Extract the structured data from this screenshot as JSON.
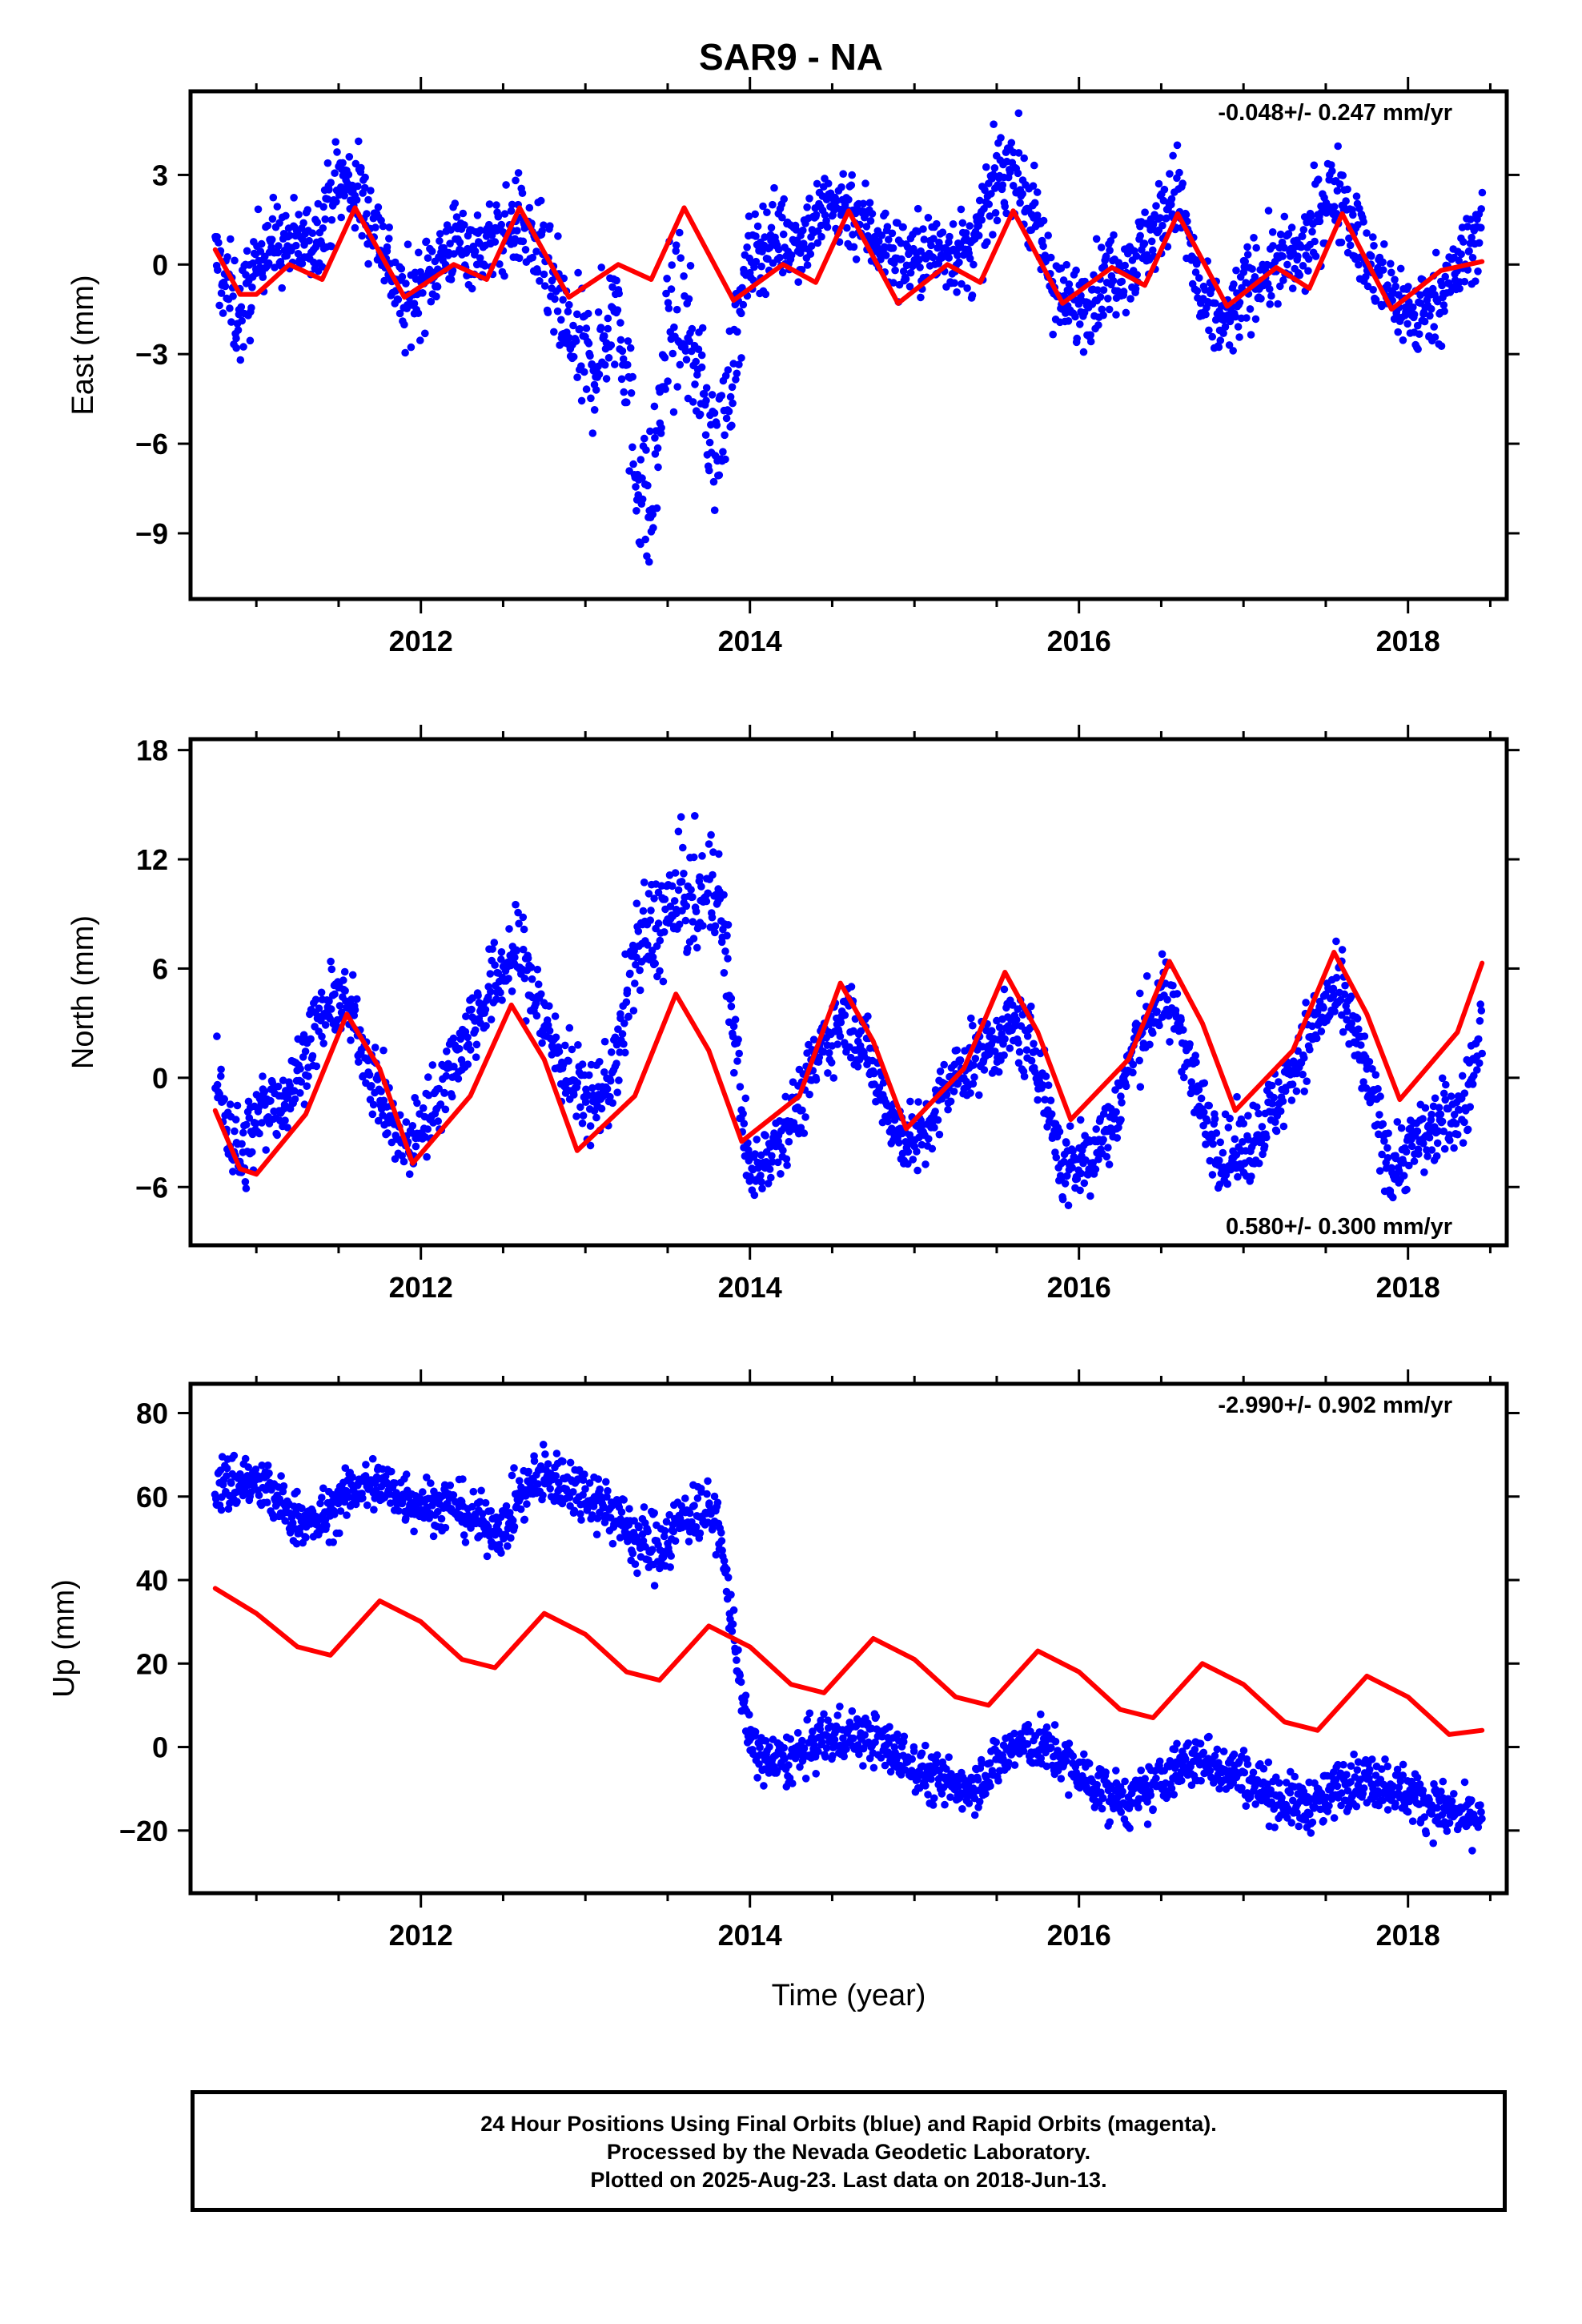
{
  "title": "SAR9 - NA",
  "colors": {
    "daily_positions": "#0000ff",
    "model_fit": "#ff0000",
    "frame": "#000000"
  },
  "footer": {
    "line1": "24 Hour Positions Using Final Orbits (blue) and Rapid Orbits (magenta).",
    "line2": "Processed by the Nevada Geodetic Laboratory.",
    "line3": "Plotted on 2025-Aug-23. Last data on 2018-Jun-13."
  },
  "chart_data": [
    {
      "type": "scatter",
      "component": "east",
      "ylabel": "East (mm)",
      "xlabel": "",
      "xlim": [
        2010.6,
        2018.6
      ],
      "ylim": [
        -11.2,
        5.8
      ],
      "x_ticks": [
        2012,
        2014,
        2016,
        2018
      ],
      "y_ticks": [
        -9,
        -6,
        -3,
        0,
        3
      ],
      "y_tick_labels": [
        "−9",
        "−6",
        "−3",
        "0",
        "3"
      ],
      "rate_label": "-0.048+/- 0.247 mm/yr",
      "rate_label_position": "top-right",
      "series": [
        {
          "style": "points",
          "x": [
            2010.75,
            2010.9,
            2011.05,
            2011.2,
            2011.35,
            2011.5,
            2011.6,
            2011.75,
            2011.9,
            2012.05,
            2012.2,
            2012.35,
            2012.5,
            2012.6,
            2012.75,
            2012.9,
            2013.05,
            2013.2,
            2013.3,
            2013.4,
            2013.5,
            2013.6,
            2013.7,
            2013.8,
            2014.0,
            2014.15,
            2014.3,
            2014.45,
            2014.6,
            2014.75,
            2014.9,
            2015.05,
            2015.2,
            2015.35,
            2015.5,
            2015.6,
            2015.75,
            2015.9,
            2016.05,
            2016.2,
            2016.35,
            2016.5,
            2016.6,
            2016.75,
            2016.9,
            2017.05,
            2017.2,
            2017.35,
            2017.5,
            2017.6,
            2017.75,
            2017.9,
            2018.05,
            2018.2,
            2018.35,
            2018.45
          ],
          "y": [
            0.2,
            -1.8,
            0.8,
            0.6,
            0.8,
            2.8,
            2.6,
            1.0,
            -1.5,
            -0.3,
            0.8,
            0.5,
            1.0,
            1.5,
            0.0,
            -2.5,
            -3.5,
            -1.0,
            -6.5,
            -8.5,
            -2.0,
            -1.8,
            -4.0,
            -6.5,
            0.2,
            1.0,
            0.8,
            1.8,
            2.0,
            1.0,
            0.2,
            0.3,
            0.5,
            0.3,
            2.8,
            3.5,
            1.0,
            -1.5,
            -1.2,
            -0.2,
            0.2,
            1.5,
            2.5,
            -1.5,
            -2.0,
            -0.5,
            0.0,
            0.2,
            2.2,
            2.5,
            0.0,
            -1.0,
            -1.8,
            -1.0,
            0.2,
            1.5
          ],
          "y_spread": [
            1.0,
            1.3,
            1.0,
            1.0,
            0.9,
            1.1,
            1.2,
            1.0,
            1.1,
            1.0,
            1.0,
            0.9,
            1.0,
            1.1,
            1.2,
            1.5,
            1.5,
            1.5,
            1.8,
            1.8,
            2.0,
            1.6,
            1.4,
            1.6,
            1.1,
            1.0,
            1.0,
            1.0,
            1.1,
            1.0,
            1.0,
            1.0,
            1.0,
            1.0,
            1.1,
            1.1,
            1.1,
            1.0,
            1.0,
            1.0,
            1.0,
            1.0,
            1.1,
            1.0,
            1.0,
            1.0,
            1.0,
            1.0,
            1.1,
            1.1,
            1.0,
            1.0,
            1.0,
            1.0,
            1.0,
            1.0
          ]
        },
        {
          "style": "line",
          "x": [
            2010.75,
            2010.9,
            2011.0,
            2011.2,
            2011.4,
            2011.6,
            2011.9,
            2012.2,
            2012.4,
            2012.6,
            2012.9,
            2013.2,
            2013.4,
            2013.6,
            2013.9,
            2014.2,
            2014.4,
            2014.6,
            2014.9,
            2015.2,
            2015.4,
            2015.6,
            2015.9,
            2016.2,
            2016.4,
            2016.6,
            2016.9,
            2017.2,
            2017.4,
            2017.6,
            2017.9,
            2018.2,
            2018.45
          ],
          "y": [
            0.5,
            -1.0,
            -1.0,
            0.0,
            -0.5,
            1.9,
            -1.1,
            0.0,
            -0.5,
            1.9,
            -1.1,
            0.0,
            -0.5,
            1.9,
            -1.2,
            0.0,
            -0.6,
            1.8,
            -1.3,
            0.0,
            -0.6,
            1.8,
            -1.3,
            -0.1,
            -0.7,
            1.7,
            -1.4,
            -0.1,
            -0.8,
            1.7,
            -1.5,
            -0.2,
            0.1
          ]
        }
      ]
    },
    {
      "type": "scatter",
      "component": "north",
      "ylabel": "North (mm)",
      "xlabel": "",
      "xlim": [
        2010.6,
        2018.6
      ],
      "ylim": [
        -9.2,
        18.6
      ],
      "x_ticks": [
        2012,
        2014,
        2016,
        2018
      ],
      "y_ticks": [
        -6,
        0,
        6,
        12,
        18
      ],
      "y_tick_labels": [
        "−6",
        "0",
        "6",
        "12",
        "18"
      ],
      "rate_label": "0.580+/- 0.300 mm/yr",
      "rate_label_position": "bottom-right",
      "series": [
        {
          "style": "points",
          "x": [
            2010.75,
            2010.9,
            2011.05,
            2011.2,
            2011.35,
            2011.5,
            2011.6,
            2011.75,
            2011.9,
            2012.05,
            2012.2,
            2012.35,
            2012.5,
            2012.6,
            2012.75,
            2012.9,
            2013.05,
            2013.2,
            2013.3,
            2013.4,
            2013.5,
            2013.6,
            2013.7,
            2013.8,
            2014.0,
            2014.15,
            2014.3,
            2014.45,
            2014.6,
            2014.75,
            2014.9,
            2015.05,
            2015.2,
            2015.35,
            2015.5,
            2015.6,
            2015.75,
            2015.9,
            2016.05,
            2016.2,
            2016.35,
            2016.5,
            2016.6,
            2016.75,
            2016.9,
            2017.05,
            2017.2,
            2017.35,
            2017.5,
            2017.6,
            2017.75,
            2017.9,
            2018.05,
            2018.2,
            2018.35,
            2018.45
          ],
          "y": [
            0.0,
            -4.5,
            -1.5,
            -1.0,
            2.5,
            4.5,
            3.0,
            -1.0,
            -4.0,
            -2.0,
            1.0,
            3.5,
            6.0,
            7.0,
            3.0,
            0.0,
            -1.5,
            1.0,
            7.0,
            8.0,
            9.0,
            10.0,
            9.5,
            11.0,
            -5.5,
            -3.5,
            -1.5,
            2.0,
            3.5,
            0.5,
            -3.0,
            -3.5,
            -0.5,
            1.0,
            2.0,
            3.0,
            1.0,
            -5.0,
            -4.5,
            -2.5,
            2.0,
            4.5,
            3.5,
            -2.0,
            -4.5,
            -3.5,
            -1.5,
            1.5,
            4.0,
            4.5,
            0.0,
            -5.0,
            -3.5,
            -2.5,
            -1.5,
            3.0
          ],
          "y_spread": [
            1.6,
            1.8,
            1.6,
            1.5,
            1.4,
            1.3,
            1.4,
            1.5,
            1.4,
            1.5,
            1.6,
            1.6,
            1.6,
            1.8,
            1.8,
            1.6,
            1.6,
            1.8,
            2.0,
            2.2,
            2.4,
            2.4,
            2.2,
            2.2,
            1.4,
            1.4,
            1.4,
            1.4,
            1.4,
            1.4,
            1.4,
            1.4,
            1.4,
            1.4,
            1.4,
            1.4,
            1.5,
            1.6,
            1.6,
            1.5,
            1.5,
            1.5,
            1.5,
            1.5,
            1.5,
            1.5,
            1.5,
            1.5,
            1.5,
            1.5,
            1.5,
            1.5,
            1.5,
            1.5,
            1.5,
            1.4
          ]
        },
        {
          "style": "line",
          "x": [
            2010.75,
            2010.9,
            2011.0,
            2011.3,
            2011.55,
            2011.75,
            2011.95,
            2012.3,
            2012.55,
            2012.75,
            2012.95,
            2013.3,
            2013.55,
            2013.75,
            2013.95,
            2014.3,
            2014.55,
            2014.75,
            2014.95,
            2015.3,
            2015.55,
            2015.75,
            2015.95,
            2016.3,
            2016.55,
            2016.75,
            2016.95,
            2017.3,
            2017.55,
            2017.75,
            2017.95,
            2018.3,
            2018.45
          ],
          "y": [
            -1.8,
            -5.0,
            -5.3,
            -2.0,
            3.5,
            0.5,
            -4.7,
            -1.0,
            4.0,
            1.0,
            -4.0,
            -1.0,
            4.6,
            1.5,
            -3.5,
            -1.0,
            5.2,
            2.0,
            -2.8,
            0.5,
            5.8,
            2.5,
            -2.3,
            1.0,
            6.4,
            3.0,
            -1.8,
            1.5,
            6.9,
            3.5,
            -1.2,
            2.5,
            6.3
          ]
        }
      ]
    },
    {
      "type": "scatter",
      "component": "up",
      "ylabel": "Up (mm)",
      "xlabel": "Time (year)",
      "xlim": [
        2010.6,
        2018.6
      ],
      "ylim": [
        -35.0,
        87.0
      ],
      "x_ticks": [
        2012,
        2014,
        2016,
        2018
      ],
      "y_ticks": [
        -20,
        0,
        20,
        40,
        60,
        80
      ],
      "y_tick_labels": [
        "−20",
        "0",
        "20",
        "40",
        "60",
        "80"
      ],
      "rate_label": "-2.990+/- 0.902 mm/yr",
      "rate_label_position": "top-right",
      "series": [
        {
          "style": "points",
          "x": [
            2010.75,
            2010.9,
            2011.05,
            2011.2,
            2011.35,
            2011.5,
            2011.6,
            2011.75,
            2011.9,
            2012.05,
            2012.2,
            2012.35,
            2012.5,
            2012.6,
            2012.75,
            2012.9,
            2013.05,
            2013.2,
            2013.3,
            2013.4,
            2013.5,
            2013.6,
            2013.7,
            2013.8,
            2014.0,
            2014.15,
            2014.3,
            2014.45,
            2014.6,
            2014.75,
            2014.9,
            2015.05,
            2015.2,
            2015.35,
            2015.5,
            2015.6,
            2015.75,
            2015.9,
            2016.05,
            2016.2,
            2016.35,
            2016.5,
            2016.6,
            2016.75,
            2016.9,
            2017.05,
            2017.2,
            2017.35,
            2017.5,
            2017.6,
            2017.75,
            2017.9,
            2018.05,
            2018.2,
            2018.35,
            2018.45
          ],
          "y": [
            62.0,
            64.0,
            62.0,
            56.0,
            53.0,
            58.0,
            62.0,
            63.0,
            60.0,
            58.0,
            58.0,
            54.0,
            52.0,
            60.0,
            65.0,
            63.0,
            60.0,
            55.0,
            50.0,
            48.0,
            50.0,
            55.0,
            57.0,
            55.0,
            0.0,
            -4.0,
            -2.0,
            2.0,
            3.0,
            2.0,
            -2.0,
            -6.0,
            -9.0,
            -9.0,
            -4.0,
            0.0,
            1.0,
            -3.0,
            -8.0,
            -12.0,
            -13.0,
            -8.0,
            -5.0,
            -3.0,
            -5.0,
            -8.0,
            -12.0,
            -14.0,
            -13.0,
            -8.0,
            -8.0,
            -9.0,
            -12.0,
            -15.0,
            -17.0,
            -16.0
          ],
          "y_spread": [
            5.0,
            5.5,
            5.0,
            4.5,
            4.5,
            4.5,
            4.5,
            5.0,
            5.0,
            4.5,
            4.5,
            4.5,
            4.5,
            5.0,
            5.5,
            5.0,
            5.0,
            5.0,
            6.0,
            6.0,
            6.0,
            5.5,
            5.0,
            5.0,
            4.5,
            4.5,
            4.5,
            4.5,
            4.5,
            4.5,
            4.5,
            4.5,
            4.5,
            4.5,
            4.5,
            4.5,
            4.5,
            4.5,
            4.5,
            4.5,
            4.5,
            4.5,
            4.5,
            4.5,
            4.5,
            4.5,
            4.5,
            4.5,
            4.5,
            4.5,
            4.5,
            4.5,
            4.5,
            4.5,
            4.5,
            4.5
          ]
        },
        {
          "style": "line",
          "x": [
            2010.75,
            2011.0,
            2011.25,
            2011.45,
            2011.75,
            2012.0,
            2012.25,
            2012.45,
            2012.75,
            2013.0,
            2013.25,
            2013.45,
            2013.75,
            2014.0,
            2014.25,
            2014.45,
            2014.75,
            2015.0,
            2015.25,
            2015.45,
            2015.75,
            2016.0,
            2016.25,
            2016.45,
            2016.75,
            2017.0,
            2017.25,
            2017.45,
            2017.75,
            2018.0,
            2018.25,
            2018.45
          ],
          "y": [
            38.0,
            32.0,
            24.0,
            22.0,
            35.0,
            30.0,
            21.0,
            19.0,
            32.0,
            27.0,
            18.0,
            16.0,
            29.0,
            24.0,
            15.0,
            13.0,
            26.0,
            21.0,
            12.0,
            10.0,
            23.0,
            18.0,
            9.0,
            7.0,
            20.0,
            15.0,
            6.0,
            4.0,
            17.0,
            12.0,
            3.0,
            4.0
          ]
        }
      ]
    }
  ]
}
